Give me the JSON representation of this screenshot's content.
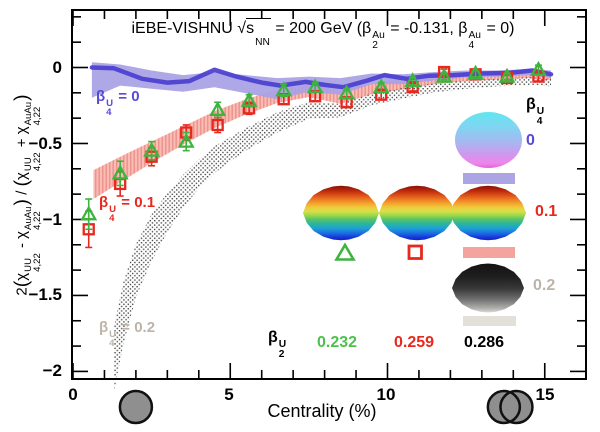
{
  "colors": {
    "green": "#3db43d",
    "red": "#e8281e",
    "blue_line": "#4b3fcf",
    "blue_band": "#a8a1e5",
    "blue_label": "#574bd6",
    "pink_band": "#f9bdb6",
    "pink_hatch": "#ed948c",
    "gray_label": "#bdb4a9",
    "dot_hatch": "#2a2a2a",
    "frame": "#000000",
    "nucleus_fill": "#8f8f8f",
    "nucleus_stroke": "#111111",
    "swatch_purple": "#aca5e4",
    "swatch_pink": "#f4a49c",
    "swatch_gray": "#e3e0d9"
  },
  "title_parts": [
    {
      "t": "iEBE-VISHNU "
    },
    {
      "t": "√"
    },
    {
      "t": "s",
      "ovl": true,
      "sub": "NN"
    },
    {
      "t": " = 200 GeV ("
    },
    {
      "t": "β",
      "sub": "2",
      "sup": "Au"
    },
    {
      "t": " = -0.131, "
    },
    {
      "t": "β",
      "sub": "4",
      "sup": "Au"
    },
    {
      "t": " = 0)"
    }
  ],
  "ylabel_parts": [
    {
      "t": "2"
    },
    {
      "t": "(",
      "cls": "bp"
    },
    {
      "t": "χ",
      "sub": "4,22",
      "sup": "UU"
    },
    {
      "t": " - "
    },
    {
      "t": "χ",
      "sub": "4,22",
      "sup": "AuAu"
    },
    {
      "t": ")",
      "cls": "bp"
    },
    {
      "t": " / "
    },
    {
      "t": "(",
      "cls": "bp"
    },
    {
      "t": "χ",
      "sub": "4,22",
      "sup": "UU"
    },
    {
      "t": " + "
    },
    {
      "t": "χ",
      "sub": "4,22",
      "sup": "AuAu"
    },
    {
      "t": ")",
      "cls": "bp"
    }
  ],
  "band_labels": {
    "blue": [
      {
        "t": "β",
        "sub": "4",
        "sup": "U"
      },
      {
        "t": " = 0"
      }
    ],
    "red": [
      {
        "t": "β",
        "sub": "4",
        "sup": "U"
      },
      {
        "t": " = 0.1"
      }
    ],
    "gray": [
      {
        "t": "β",
        "sub": "4",
        "sup": "U"
      },
      {
        "t": " = 0.2"
      }
    ]
  },
  "legend": {
    "beta4_header_parts": [
      {
        "t": "β",
        "sub": "4",
        "sup": "U"
      }
    ],
    "beta4_values": [
      "0",
      "0.1",
      "0.2"
    ],
    "beta2_header_parts": [
      {
        "t": "β",
        "sub": "2",
        "sup": "U"
      }
    ],
    "beta2_values": [
      "0.232",
      "0.259",
      "0.286"
    ]
  },
  "axes": {
    "xlabel": "Centrality (%)",
    "x_tick_labels": [
      "0",
      "5",
      "10",
      "15"
    ],
    "x_ticks": [
      0,
      5,
      10,
      15
    ],
    "y_tick_labels": [
      "0",
      "−0.5",
      "−1",
      "−1.5",
      "−2"
    ],
    "y_ticks": [
      0,
      -0.5,
      -1,
      -1.5,
      -2
    ],
    "xlim": [
      0,
      16.3
    ],
    "ylim": [
      -2.06,
      0.38
    ]
  },
  "chart_data": {
    "type": "scatter+line+bands",
    "title": "iEBE-VISHNU sqrt(s_NN) = 200 GeV (beta2_Au = -0.131, beta4_Au = 0)",
    "xlabel": "Centrality (%)",
    "ylabel": "2(chi4,22_UU - chi4,22_AuAu) / (chi4,22_UU + chi4,22_AuAu)",
    "xlim": [
      0,
      16.3
    ],
    "ylim": [
      -2.06,
      0.38
    ],
    "series": [
      {
        "name": "beta4U-0-band",
        "type": "band",
        "x": [
          0.6,
          1.5,
          2.5,
          3.5,
          4.5,
          5.5,
          6.5,
          7.5,
          8.5,
          9.5,
          10.5,
          11.5,
          12.5,
          13.5,
          14.5,
          15.2
        ],
        "y_upper": [
          0.035,
          0.02,
          -0.02,
          -0.05,
          -0.03,
          -0.05,
          -0.07,
          -0.06,
          -0.07,
          -0.04,
          -0.045,
          -0.03,
          -0.02,
          -0.02,
          -0.01,
          -0.02
        ],
        "y_lower": [
          -0.2,
          -0.12,
          -0.14,
          -0.16,
          -0.13,
          -0.17,
          -0.21,
          -0.16,
          -0.18,
          -0.11,
          -0.11,
          -0.085,
          -0.065,
          -0.06,
          -0.05,
          -0.07
        ]
      },
      {
        "name": "beta4U-0-line",
        "type": "line",
        "x": [
          0.6,
          1.3,
          2.2,
          3.0,
          3.7,
          4.5,
          5.2,
          6.0,
          6.6,
          7.4,
          8.0,
          8.6,
          9.3,
          9.9,
          10.6,
          11.3,
          12.1,
          13.0,
          13.9,
          14.6,
          15.2
        ],
        "y": [
          0.0,
          -0.005,
          -0.075,
          -0.1,
          -0.09,
          -0.015,
          -0.06,
          -0.1,
          -0.12,
          -0.095,
          -0.115,
          -0.13,
          -0.09,
          -0.05,
          -0.075,
          -0.055,
          -0.05,
          -0.04,
          -0.035,
          -0.02,
          -0.045
        ]
      },
      {
        "name": "beta4U-0.1-band",
        "type": "band-pink-hatched",
        "x": [
          0.65,
          1.5,
          2.5,
          3.5,
          4.5,
          5.5,
          6.5,
          7.5,
          8.5,
          9.5,
          10.5,
          11.5,
          12.5,
          13.5,
          14.5,
          15.2
        ],
        "y_upper": [
          -0.68,
          -0.59,
          -0.49,
          -0.39,
          -0.29,
          -0.21,
          -0.145,
          -0.115,
          -0.15,
          -0.105,
          -0.075,
          -0.05,
          -0.03,
          -0.03,
          -0.02,
          -0.03
        ],
        "y_lower": [
          -0.87,
          -0.76,
          -0.63,
          -0.51,
          -0.4,
          -0.31,
          -0.235,
          -0.195,
          -0.24,
          -0.175,
          -0.145,
          -0.11,
          -0.09,
          -0.08,
          -0.07,
          -0.085
        ]
      },
      {
        "name": "beta4U-0.2-band",
        "type": "band-gray-dotted",
        "x": [
          1.3,
          1.6,
          2.0,
          2.5,
          3.0,
          3.5,
          4.0,
          4.5,
          5.0,
          5.5,
          6.5,
          7.5,
          8.5,
          9.5,
          10.5,
          11.5,
          12.5,
          13.5,
          14.5,
          15.2
        ],
        "y_upper": [
          -1.72,
          -1.42,
          -1.17,
          -0.97,
          -0.83,
          -0.71,
          -0.61,
          -0.52,
          -0.46,
          -0.4,
          -0.295,
          -0.23,
          -0.24,
          -0.17,
          -0.135,
          -0.105,
          -0.085,
          -0.075,
          -0.065,
          -0.075
        ],
        "y_lower": [
          -2.15,
          -1.83,
          -1.52,
          -1.28,
          -1.09,
          -0.93,
          -0.8,
          -0.7,
          -0.62,
          -0.55,
          -0.43,
          -0.34,
          -0.33,
          -0.25,
          -0.205,
          -0.165,
          -0.14,
          -0.125,
          -0.115,
          -0.125
        ]
      },
      {
        "name": "UU-beta2U-0.232-triangles",
        "type": "scatter-triangle",
        "x": [
          0.5,
          1.5,
          2.5,
          3.6,
          4.6,
          5.6,
          6.7,
          7.7,
          8.7,
          9.8,
          10.8,
          11.8,
          12.8,
          13.8,
          14.8
        ],
        "y": [
          -0.97,
          -0.7,
          -0.55,
          -0.49,
          -0.28,
          -0.22,
          -0.15,
          -0.13,
          -0.17,
          -0.13,
          -0.09,
          -0.06,
          -0.04,
          -0.06,
          -0.015
        ],
        "yerr": [
          0.1,
          0.08,
          0.06,
          0.06,
          0.05,
          0.04,
          0.04,
          0.03,
          0.03,
          0.03,
          0.025,
          0.02,
          0.02,
          0.02,
          0.03
        ]
      },
      {
        "name": "UU-beta2U-0.259-squares",
        "type": "scatter-square",
        "x": [
          0.5,
          1.5,
          2.5,
          3.6,
          4.6,
          5.6,
          6.7,
          7.7,
          8.7,
          9.8,
          10.8,
          11.8,
          12.8,
          13.8,
          14.8
        ],
        "y": [
          -1.07,
          -0.77,
          -0.59,
          -0.43,
          -0.38,
          -0.27,
          -0.21,
          -0.19,
          -0.23,
          -0.18,
          -0.13,
          -0.03,
          -0.045,
          -0.07,
          -0.06
        ],
        "yerr": [
          0.12,
          0.08,
          0.06,
          0.05,
          0.05,
          0.04,
          0.03,
          0.03,
          0.03,
          0.03,
          0.025,
          0.02,
          0.02,
          0.02,
          0.03
        ]
      }
    ],
    "annotations": {
      "below_axis_nuclei": {
        "single_circle_centrality": 2.0,
        "pair_circle_centralities": [
          13.7,
          14.1
        ],
        "radius_px": 16
      }
    }
  }
}
